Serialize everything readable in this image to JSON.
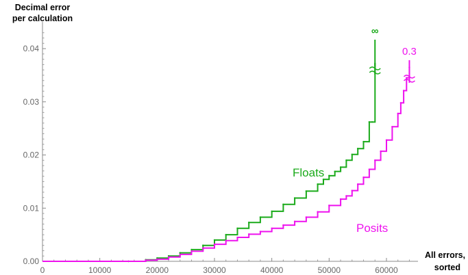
{
  "chart_data": {
    "type": "line",
    "ylabel_lines": [
      "Decimal error",
      "per calculation"
    ],
    "xlabel_lines": [
      "All errors,",
      "sorted"
    ],
    "xlim": [
      0,
      65500
    ],
    "ylim": [
      0,
      0.044
    ],
    "x_ticks": [
      0,
      10000,
      20000,
      30000,
      40000,
      50000,
      60000
    ],
    "x_tick_labels": [
      "0",
      "10000",
      "20000",
      "30000",
      "40000",
      "50000",
      "60000"
    ],
    "y_ticks": [
      0,
      0.01,
      0.02,
      0.03,
      0.04
    ],
    "y_tick_labels": [
      "0.00",
      "0.01",
      "0.02",
      "0.03",
      "0.04"
    ],
    "series": [
      {
        "name": "Floats",
        "color": "#1aaa1a",
        "x": [
          0,
          15000,
          18000,
          20000,
          22000,
          24000,
          26000,
          28000,
          30000,
          32000,
          34000,
          36000,
          38000,
          40000,
          42000,
          44000,
          46000,
          48000,
          49000,
          50000,
          51000,
          52000,
          53000,
          54000,
          55000,
          56000,
          57000,
          57500,
          58000
        ],
        "y": [
          0,
          0,
          0.0003,
          0.0006,
          0.001,
          0.0016,
          0.0022,
          0.003,
          0.004,
          0.005,
          0.0062,
          0.0073,
          0.0083,
          0.0094,
          0.0107,
          0.0119,
          0.0132,
          0.0145,
          0.0154,
          0.0161,
          0.0169,
          0.0177,
          0.019,
          0.0201,
          0.0212,
          0.0225,
          0.0262,
          0.0262,
          0.0372
        ],
        "break_annotation": "∞"
      },
      {
        "name": "Posits",
        "color": "#ee11ee",
        "x": [
          0,
          15000,
          18000,
          20000,
          22000,
          24000,
          26000,
          28000,
          30000,
          32000,
          34000,
          36000,
          38000,
          40000,
          42000,
          44000,
          46000,
          48000,
          50000,
          52000,
          53000,
          54000,
          55000,
          56000,
          57000,
          58000,
          59000,
          60000,
          61000,
          62000,
          62500,
          63000,
          63500,
          64000
        ],
        "y": [
          0,
          0,
          0.0002,
          0.0004,
          0.0008,
          0.0013,
          0.0019,
          0.0025,
          0.0032,
          0.0039,
          0.0045,
          0.0051,
          0.0056,
          0.0062,
          0.0068,
          0.0075,
          0.0083,
          0.0093,
          0.0105,
          0.0117,
          0.0123,
          0.0133,
          0.0145,
          0.0158,
          0.0173,
          0.019,
          0.0207,
          0.0228,
          0.0253,
          0.0278,
          0.0298,
          0.0321,
          0.0345,
          0.0365
        ],
        "break_annotation": "0.3"
      }
    ],
    "grid": false,
    "legend": "inline labels"
  }
}
